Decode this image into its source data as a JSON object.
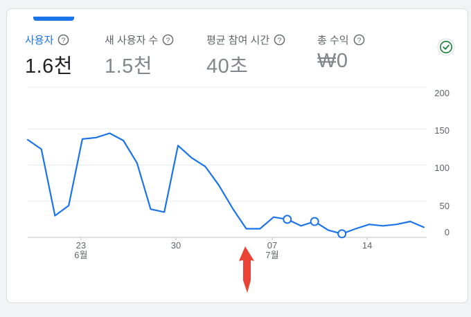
{
  "metrics": [
    {
      "label": "사용자",
      "value": "1.6천",
      "active": true
    },
    {
      "label": "새 사용자 수",
      "value": "1.5천",
      "active": false
    },
    {
      "label": "평균 참여 시간",
      "value": "40초",
      "active": false
    },
    {
      "label": "총 수익",
      "value": "₩0",
      "active": false
    }
  ],
  "icons": {
    "help": "help-circle-icon",
    "status": "check-circle-icon",
    "annotation": "red-arrow-up-icon"
  },
  "colors": {
    "accent": "#1a73e8",
    "status": "#188038",
    "annotation": "#ea4335",
    "grid": "#e0e0e0"
  },
  "chart_data": {
    "type": "line",
    "title": "",
    "xlabel": "",
    "ylabel": "",
    "ylim": [
      0,
      200
    ],
    "y_ticks": [
      "200",
      "150",
      "100",
      "50",
      "0"
    ],
    "x_ticks": [
      {
        "day": "23",
        "month": "6월"
      },
      {
        "day": "30",
        "month": ""
      },
      {
        "day": "07",
        "month": "7월"
      },
      {
        "day": "14",
        "month": ""
      }
    ],
    "x_range": [
      "6월 19",
      "7월 18"
    ],
    "series": [
      {
        "name": "",
        "x": [
          "6월 19",
          "6월 20",
          "6월 21",
          "6월 22",
          "6월 23",
          "6월 24",
          "6월 25",
          "6월 26",
          "6월 27",
          "6월 28",
          "6월 29",
          "6월 30",
          "7월 1",
          "7월 2",
          "7월 3",
          "7월 4",
          "7월 5",
          "7월 6",
          "7월 7",
          "7월 8",
          "7월 9",
          "7월 10",
          "7월 11",
          "7월 12",
          "7월 13",
          "7월 14",
          "7월 15",
          "7월 16",
          "7월 17",
          "7月 18"
        ],
        "values": [
          135,
          122,
          30,
          44,
          136,
          138,
          144,
          134,
          103,
          39,
          35,
          127,
          110,
          98,
          72,
          40,
          12,
          12,
          28,
          25,
          16,
          22,
          10,
          5,
          12,
          18,
          16,
          18,
          22,
          14
        ],
        "marker_x": [
          "7월 8",
          "7월 10",
          "7월 12"
        ]
      }
    ],
    "annotation": "arrow pointing at 7월 6"
  }
}
